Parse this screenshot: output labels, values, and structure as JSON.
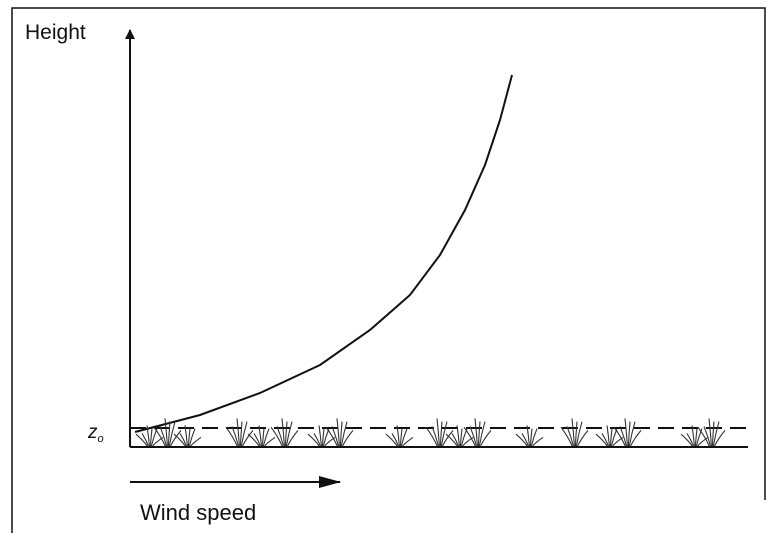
{
  "axis_labels": {
    "y": "Height",
    "x": "Wind speed"
  },
  "roughness_label": {
    "base": "z",
    "subscript": "o"
  }
}
